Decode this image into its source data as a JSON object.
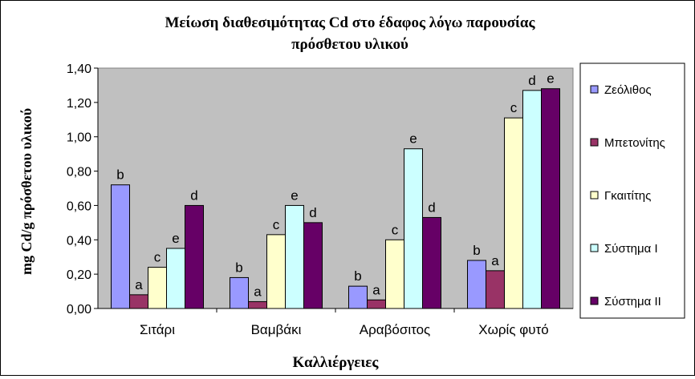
{
  "chart_data": {
    "type": "bar",
    "title": "Μείωση διαθεσιμότητας Cd στο έδαφος λόγω παρουσίας πρόσθετου υλικού",
    "title_lines": [
      "Μείωση διαθεσιμότητας Cd στο έδαφος λόγω παρουσίας",
      "πρόσθετου υλικού"
    ],
    "xlabel": "Καλλιέργειες",
    "ylabel": "mg Cd/g πρόσθετου υλικού",
    "ylim": [
      0,
      1.4
    ],
    "yticks": [
      "0,00",
      "0,20",
      "0,40",
      "0,60",
      "0,80",
      "1,00",
      "1,20",
      "1,40"
    ],
    "categories": [
      "Σιτάρι",
      "Βαμβάκι",
      "Αραβόσιτος",
      "Χωρίς φυτό"
    ],
    "series": [
      {
        "name": "Ζεόλιθος",
        "color": "#9999ff",
        "values": [
          0.72,
          0.18,
          0.13,
          0.28
        ],
        "labels": [
          "b",
          "b",
          "b",
          "b"
        ]
      },
      {
        "name": "Μπετονίτης",
        "color": "#993366",
        "values": [
          0.08,
          0.04,
          0.05,
          0.22
        ],
        "labels": [
          "a",
          "a",
          "a",
          "a"
        ]
      },
      {
        "name": "Γκαιτίτης",
        "color": "#ffffcc",
        "values": [
          0.24,
          0.43,
          0.4,
          1.11
        ],
        "labels": [
          "c",
          "c",
          "c",
          "c"
        ]
      },
      {
        "name": "Σύστημα Ι",
        "color": "#ccffff",
        "values": [
          0.35,
          0.6,
          0.93,
          1.27
        ],
        "labels": [
          "e",
          "e",
          "e",
          "d"
        ]
      },
      {
        "name": "Σύστημα ΙΙ",
        "color": "#660066",
        "values": [
          0.6,
          0.5,
          0.53,
          1.28
        ],
        "labels": [
          "d",
          "d",
          "d",
          "e"
        ]
      }
    ],
    "plot_background": "#c0c0c0",
    "grid": false,
    "legend_position": "right"
  }
}
